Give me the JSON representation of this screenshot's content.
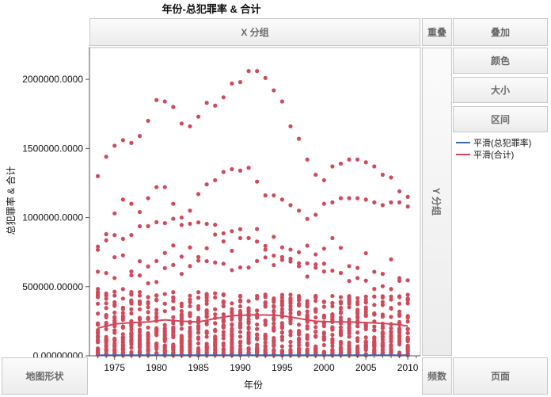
{
  "title": "年份-总犯罪率 & 合计",
  "zones": {
    "x_group": "X 分组",
    "overlap": "重叠",
    "stack": "叠加",
    "color": "颜色",
    "size": "大小",
    "interval": "区间",
    "y_group": "Y 分组",
    "map_shape": "地图形状",
    "frequency": "频数",
    "page": "页面"
  },
  "legend": [
    {
      "label": "平滑(总犯罪率)",
      "color": "#3b66b0"
    },
    {
      "label": "平滑(合计)",
      "color": "#d4465a"
    }
  ],
  "colors": {
    "points": "#d04a5b",
    "smooth_total": "#d4465a",
    "smooth_rate": "#3b66b0",
    "grid": "#d9d9d9"
  },
  "chart_data": {
    "type": "scatter",
    "title": "年份-总犯罪率 & 合计",
    "xlabel": "年份",
    "ylabel": "总犯罪率 & 合计",
    "xlim": [
      1972,
      2011.5
    ],
    "ylim": [
      0,
      2230000
    ],
    "x_ticks": [
      1975,
      1980,
      1985,
      1990,
      1995,
      2000,
      2005,
      2010
    ],
    "y_ticks": [
      0,
      500000,
      1000000,
      1500000,
      2000000
    ],
    "y_tick_labels": [
      "0.00000000",
      "500000.00000",
      "1000000.0000",
      "1500000.0000",
      "2000000.0000"
    ],
    "grid": false,
    "legend_position": "right",
    "top_series": {
      "name": "",
      "x": [
        1973,
        1974,
        1975,
        1976,
        1977,
        1978,
        1979,
        1980,
        1981,
        1982,
        1983,
        1984,
        1985,
        1986,
        1987,
        1988,
        1989,
        1990,
        1991,
        1992,
        1993,
        1994,
        1995,
        1996,
        1997,
        1998,
        1999,
        2000,
        2001,
        2002,
        2003,
        2004,
        2005,
        2006,
        2007,
        2008,
        2009,
        2010
      ],
      "y": [
        1300000,
        1440000,
        1520000,
        1560000,
        1540000,
        1590000,
        1700000,
        1850000,
        1840000,
        1800000,
        1680000,
        1660000,
        1730000,
        1830000,
        1810000,
        1870000,
        1970000,
        1980000,
        2060000,
        2060000,
        2010000,
        1920000,
        1840000,
        1660000,
        1570000,
        1420000,
        1310000,
        1270000,
        1370000,
        1390000,
        1420000,
        1420000,
        1400000,
        1370000,
        1310000,
        1290000,
        1190000,
        1150000
      ]
    },
    "second_series": {
      "name": "",
      "x": [
        1973,
        1974,
        1975,
        1976,
        1977,
        1978,
        1979,
        1980,
        1981,
        1982,
        1983,
        1984,
        1985,
        1986,
        1987,
        1988,
        1989,
        1990,
        1991,
        1992,
        1993,
        1994,
        1995,
        1996,
        1997,
        1998,
        1999,
        2000,
        2001,
        2002,
        2003,
        2004,
        2005,
        2006,
        2007,
        2008,
        2009,
        2010
      ],
      "y": [
        790000,
        880000,
        1030000,
        1130000,
        1100000,
        1040000,
        1140000,
        1220000,
        1220000,
        1100000,
        1000000,
        1050000,
        1170000,
        1240000,
        1270000,
        1330000,
        1350000,
        1340000,
        1360000,
        1260000,
        1160000,
        1160000,
        1130000,
        1090000,
        1050000,
        990000,
        1020000,
        1100000,
        1110000,
        1140000,
        1140000,
        1140000,
        1130000,
        1110000,
        1090000,
        1110000,
        1110000,
        1080000
      ]
    },
    "smooth_total": {
      "name": "平滑(合计)",
      "x": [
        1973,
        1975,
        1977,
        1979,
        1981,
        1983,
        1985,
        1987,
        1989,
        1991,
        1993,
        1995,
        1997,
        1999,
        2001,
        2003,
        2005,
        2007,
        2009,
        2010
      ],
      "y": [
        200000,
        230000,
        240000,
        245000,
        260000,
        250000,
        245000,
        270000,
        290000,
        295000,
        295000,
        290000,
        270000,
        250000,
        245000,
        245000,
        240000,
        235000,
        225000,
        215000
      ]
    },
    "smooth_rate": {
      "name": "平滑(总犯罪率)",
      "x": [
        1973,
        2010
      ],
      "y": [
        4500,
        4200
      ]
    }
  }
}
